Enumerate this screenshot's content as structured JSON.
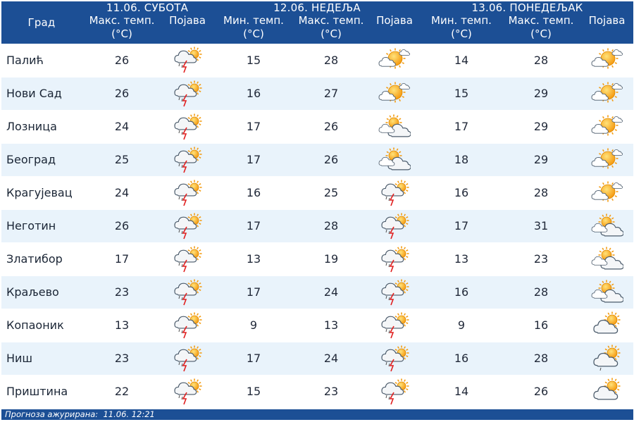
{
  "header": {
    "city_label": "Град",
    "days": [
      {
        "date": "11.06. СУБОТА",
        "cols": [
          "Макс. темп.\n(°C)",
          "Појава"
        ]
      },
      {
        "date": "12.06. НЕДЕЉА",
        "cols": [
          "Мин. темп.\n(°C)",
          "Макс. темп.\n(°C)",
          "Појава"
        ]
      },
      {
        "date": "13.06. ПОНЕДЕЉАК",
        "cols": [
          "Мин. темп.\n(°C)",
          "Макс. темп.\n(°C)",
          "Појава"
        ]
      }
    ]
  },
  "icons": {
    "storm": "thunderstorm-icon",
    "partly": "partly-cloudy-icon",
    "sunny": "mostly-sunny-icon",
    "cloudsun": "cloud-sun-icon",
    "shower": "sun-shower-icon"
  },
  "colors": {
    "header_bg": "#1c4f95",
    "row_alt": "#e9f3fb",
    "sun": "#f5a623",
    "cloud": "#ffffff",
    "bolt": "#e02020"
  },
  "rows": [
    {
      "city": "Палић",
      "d1_max": "26",
      "d1_icon": "storm",
      "d2_min": "15",
      "d2_max": "28",
      "d2_icon": "sunny",
      "d3_min": "14",
      "d3_max": "28",
      "d3_icon": "sunny"
    },
    {
      "city": "Нови Сад",
      "d1_max": "26",
      "d1_icon": "storm",
      "d2_min": "16",
      "d2_max": "27",
      "d2_icon": "sunny",
      "d3_min": "15",
      "d3_max": "29",
      "d3_icon": "sunny"
    },
    {
      "city": "Лозница",
      "d1_max": "24",
      "d1_icon": "storm",
      "d2_min": "17",
      "d2_max": "26",
      "d2_icon": "partly",
      "d3_min": "17",
      "d3_max": "29",
      "d3_icon": "sunny"
    },
    {
      "city": "Београд",
      "d1_max": "25",
      "d1_icon": "storm",
      "d2_min": "17",
      "d2_max": "26",
      "d2_icon": "partly",
      "d3_min": "18",
      "d3_max": "29",
      "d3_icon": "sunny"
    },
    {
      "city": "Крагујевац",
      "d1_max": "24",
      "d1_icon": "storm",
      "d2_min": "16",
      "d2_max": "25",
      "d2_icon": "storm",
      "d3_min": "16",
      "d3_max": "28",
      "d3_icon": "sunny"
    },
    {
      "city": "Неготин",
      "d1_max": "26",
      "d1_icon": "storm",
      "d2_min": "17",
      "d2_max": "28",
      "d2_icon": "storm",
      "d3_min": "17",
      "d3_max": "31",
      "d3_icon": "partly"
    },
    {
      "city": "Златибор",
      "d1_max": "17",
      "d1_icon": "storm",
      "d2_min": "13",
      "d2_max": "19",
      "d2_icon": "storm",
      "d3_min": "13",
      "d3_max": "23",
      "d3_icon": "partly"
    },
    {
      "city": "Краљево",
      "d1_max": "23",
      "d1_icon": "storm",
      "d2_min": "17",
      "d2_max": "24",
      "d2_icon": "storm",
      "d3_min": "16",
      "d3_max": "28",
      "d3_icon": "partly"
    },
    {
      "city": "Копаоник",
      "d1_max": "13",
      "d1_icon": "storm",
      "d2_min": "9",
      "d2_max": "13",
      "d2_icon": "storm",
      "d3_min": "9",
      "d3_max": "16",
      "d3_icon": "cloudsun"
    },
    {
      "city": "Ниш",
      "d1_max": "23",
      "d1_icon": "storm",
      "d2_min": "17",
      "d2_max": "24",
      "d2_icon": "storm",
      "d3_min": "16",
      "d3_max": "28",
      "d3_icon": "shower"
    },
    {
      "city": "Приштина",
      "d1_max": "22",
      "d1_icon": "storm",
      "d2_min": "15",
      "d2_max": "23",
      "d2_icon": "storm",
      "d3_min": "14",
      "d3_max": "26",
      "d3_icon": "cloudsun"
    }
  ],
  "footer": {
    "label": "Прогноза ажурирана:",
    "value": "11.06. 12:21"
  }
}
